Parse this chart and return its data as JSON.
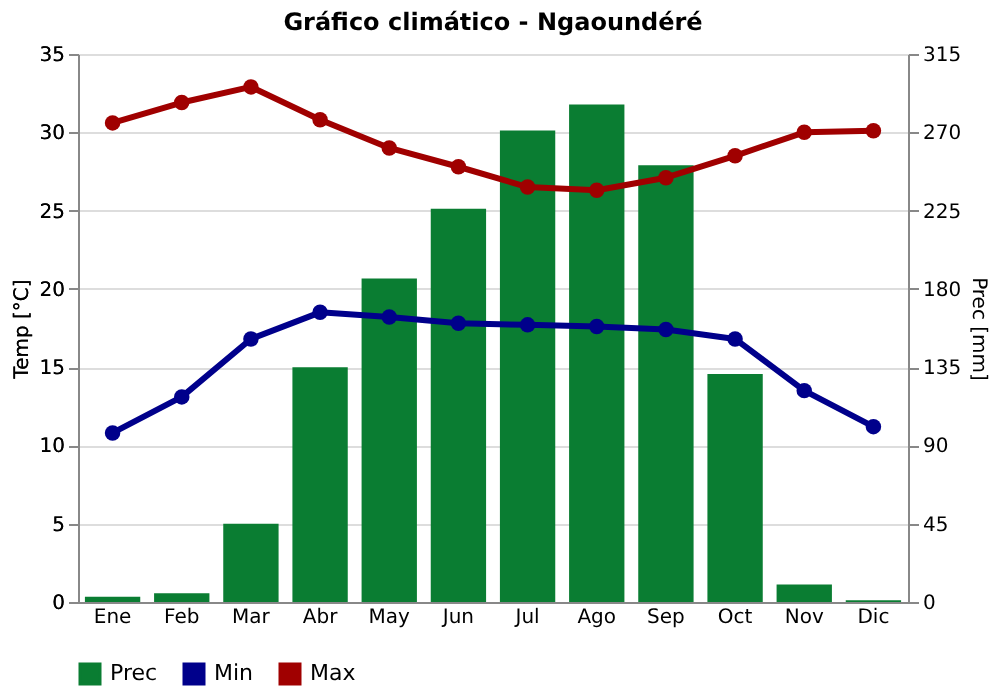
{
  "chart_data": {
    "type": "bar",
    "title": "Gráfico climático - Ngaoundéré",
    "ylabel": "Temp [°C]",
    "y2label": "Prec [mm]",
    "categories": [
      "Ene",
      "Feb",
      "Mar",
      "Abr",
      "May",
      "Jun",
      "Jul",
      "Ago",
      "Sep",
      "Oct",
      "Nov",
      "Dic"
    ],
    "series": [
      {
        "name": "Prec",
        "axis": "y2",
        "color": "#0a7d32",
        "values": [
          3,
          5,
          45,
          135,
          186,
          226,
          271,
          286,
          251,
          131,
          10,
          1
        ]
      },
      {
        "name": "Min",
        "type": "line",
        "color": "#00008b",
        "values": [
          10.8,
          13.1,
          16.8,
          18.5,
          18.2,
          17.8,
          17.7,
          17.6,
          17.4,
          16.8,
          13.5,
          11.2
        ]
      },
      {
        "name": "Max",
        "type": "line",
        "color": "#a00000",
        "values": [
          30.6,
          31.9,
          32.9,
          30.8,
          29.0,
          27.8,
          26.5,
          26.3,
          27.1,
          28.5,
          30.0,
          30.1
        ]
      }
    ],
    "ylim": [
      0,
      35
    ],
    "yticks": [
      0,
      5,
      10,
      15,
      20,
      25,
      30,
      35
    ],
    "y2lim": [
      0,
      315
    ],
    "y2ticks": [
      0,
      45,
      90,
      135,
      180,
      225,
      270,
      315
    ],
    "grid": "y",
    "legend": "bottom",
    "marker": "circle",
    "line_style": "solid"
  }
}
